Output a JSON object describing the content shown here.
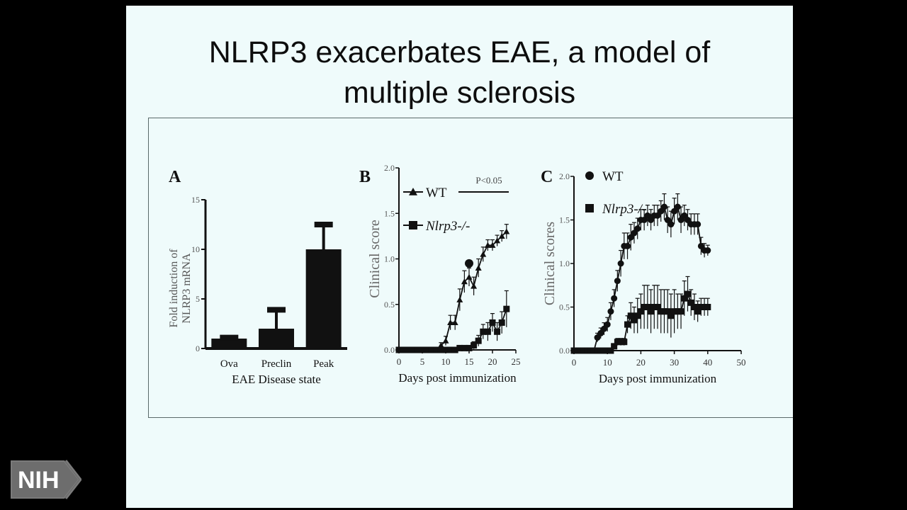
{
  "slide": {
    "title_line1": "NLRP3 exacerbates EAE, a model of",
    "title_line2": "multiple sclerosis"
  },
  "logo": {
    "text": "NIH",
    "icon": "nih-chevron-logo"
  },
  "colors": {
    "background": "#000000",
    "slide": "#effbfb",
    "ink": "#111111"
  },
  "chart_data": [
    {
      "panel": "A",
      "type": "bar",
      "title": "",
      "xlabel": "EAE Disease state",
      "ylabel_line1": "Fold induction of",
      "ylabel_line2": "NLRP3 mRNA",
      "categories": [
        "Ova",
        "Preclin",
        "Peak"
      ],
      "values": [
        1,
        2,
        10
      ],
      "errors": [
        0.1,
        1.9,
        2.5
      ],
      "ylim": [
        0,
        15
      ],
      "yticks": [
        0,
        5,
        10,
        15
      ]
    },
    {
      "panel": "B",
      "type": "line",
      "xlabel": "Days post immunization",
      "ylabel": "Clinical score",
      "xlim": [
        0,
        25
      ],
      "ylim": [
        0,
        2.0
      ],
      "xticks": [
        0,
        5,
        10,
        15,
        20,
        25
      ],
      "yticks": [
        "0.0",
        "0.5",
        "1.0",
        "1.5",
        "2.0"
      ],
      "annotation": "P<0.05",
      "outlier": {
        "x": 15,
        "y": 0.95
      },
      "series": [
        {
          "name": "WT",
          "marker": "triangle",
          "x": [
            0,
            1,
            2,
            3,
            4,
            5,
            6,
            7,
            8,
            9,
            10,
            11,
            12,
            13,
            14,
            15,
            16,
            17,
            18,
            19,
            20,
            21,
            22,
            23
          ],
          "y": [
            0,
            0,
            0,
            0,
            0,
            0,
            0,
            0,
            0,
            0.05,
            0.1,
            0.3,
            0.3,
            0.55,
            0.75,
            0.8,
            0.7,
            0.9,
            1.05,
            1.15,
            1.15,
            1.2,
            1.25,
            1.3
          ],
          "err": [
            0,
            0,
            0,
            0,
            0,
            0,
            0,
            0,
            0,
            0.03,
            0.05,
            0.08,
            0.08,
            0.12,
            0.12,
            0.1,
            0.1,
            0.1,
            0.08,
            0.06,
            0.06,
            0.06,
            0.06,
            0.08
          ]
        },
        {
          "name": "Nlrp3-/-",
          "marker": "square",
          "x": [
            0,
            1,
            2,
            3,
            4,
            5,
            6,
            7,
            8,
            9,
            10,
            11,
            12,
            13,
            14,
            15,
            16,
            17,
            18,
            19,
            20,
            21,
            22,
            23
          ],
          "y": [
            0,
            0,
            0,
            0,
            0,
            0,
            0,
            0,
            0,
            0,
            0,
            0,
            0,
            0.02,
            0.02,
            0.02,
            0.05,
            0.1,
            0.2,
            0.2,
            0.3,
            0.2,
            0.3,
            0.45
          ],
          "err": [
            0,
            0,
            0,
            0,
            0,
            0,
            0,
            0,
            0,
            0,
            0,
            0,
            0,
            0.02,
            0.02,
            0.02,
            0.04,
            0.06,
            0.08,
            0.1,
            0.1,
            0.1,
            0.12,
            0.2
          ]
        }
      ]
    },
    {
      "panel": "C",
      "type": "line",
      "xlabel": "Days post immunization",
      "ylabel": "Clinical scores",
      "xlim": [
        0,
        50
      ],
      "ylim": [
        0,
        2.0
      ],
      "xticks": [
        0,
        10,
        20,
        30,
        40,
        50
      ],
      "yticks": [
        "0.0",
        "0.5",
        "1.0",
        "1.5",
        "2.0"
      ],
      "series": [
        {
          "name": "WT",
          "marker": "circle",
          "x": [
            0,
            1,
            2,
            3,
            4,
            5,
            6,
            7,
            8,
            9,
            10,
            11,
            12,
            13,
            14,
            15,
            16,
            17,
            18,
            19,
            20,
            21,
            22,
            23,
            24,
            25,
            26,
            27,
            28,
            29,
            30,
            31,
            32,
            33,
            34,
            35,
            36,
            37,
            38,
            39,
            40
          ],
          "y": [
            0,
            0,
            0,
            0,
            0,
            0,
            0,
            0.15,
            0.2,
            0.25,
            0.3,
            0.45,
            0.6,
            0.8,
            1.0,
            1.2,
            1.2,
            1.3,
            1.35,
            1.4,
            1.5,
            1.5,
            1.55,
            1.5,
            1.55,
            1.55,
            1.6,
            1.65,
            1.5,
            1.45,
            1.6,
            1.65,
            1.5,
            1.55,
            1.5,
            1.45,
            1.45,
            1.45,
            1.2,
            1.15,
            1.15
          ],
          "err": [
            0,
            0,
            0,
            0,
            0,
            0,
            0,
            0.05,
            0.06,
            0.07,
            0.08,
            0.1,
            0.1,
            0.12,
            0.15,
            0.15,
            0.15,
            0.15,
            0.12,
            0.12,
            0.12,
            0.12,
            0.12,
            0.12,
            0.12,
            0.12,
            0.12,
            0.15,
            0.15,
            0.15,
            0.15,
            0.15,
            0.15,
            0.12,
            0.12,
            0.12,
            0.12,
            0.12,
            0.1,
            0.08,
            0.06
          ]
        },
        {
          "name": "Nlrp3-/-",
          "marker": "square",
          "x": [
            0,
            1,
            2,
            3,
            4,
            5,
            6,
            7,
            8,
            9,
            10,
            11,
            12,
            13,
            14,
            15,
            16,
            17,
            18,
            19,
            20,
            21,
            22,
            23,
            24,
            25,
            26,
            27,
            28,
            29,
            30,
            31,
            32,
            33,
            34,
            35,
            36,
            37,
            38,
            39,
            40
          ],
          "y": [
            0,
            0,
            0,
            0,
            0,
            0,
            0,
            0,
            0,
            0,
            0,
            0,
            0.05,
            0.1,
            0.1,
            0.1,
            0.3,
            0.4,
            0.35,
            0.4,
            0.45,
            0.5,
            0.5,
            0.45,
            0.5,
            0.5,
            0.45,
            0.45,
            0.45,
            0.4,
            0.45,
            0.45,
            0.45,
            0.6,
            0.65,
            0.55,
            0.5,
            0.45,
            0.5,
            0.5,
            0.5
          ],
          "err": [
            0,
            0,
            0,
            0,
            0,
            0,
            0,
            0,
            0,
            0,
            0,
            0,
            0.03,
            0.04,
            0.04,
            0.04,
            0.1,
            0.15,
            0.15,
            0.2,
            0.2,
            0.25,
            0.25,
            0.25,
            0.25,
            0.25,
            0.25,
            0.25,
            0.25,
            0.25,
            0.25,
            0.2,
            0.2,
            0.2,
            0.2,
            0.15,
            0.15,
            0.12,
            0.1,
            0.1,
            0.1
          ]
        }
      ]
    }
  ]
}
